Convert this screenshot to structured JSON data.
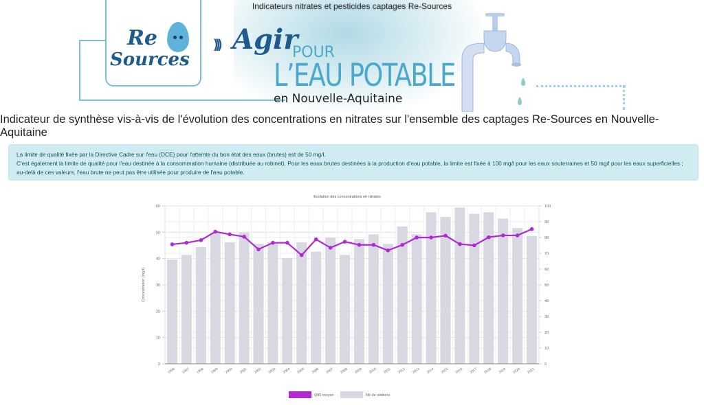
{
  "app": {
    "title": "Indicateurs nitrates et pesticides captages Re-Sources"
  },
  "banner": {
    "logo_re": "Re",
    "logo_sources": "Sources",
    "tagline_agir": "Agir",
    "tagline_pour": "POUR",
    "tagline_eau": "L’EAU POTABLE",
    "tagline_region": "en Nouvelle-Aquitaine"
  },
  "page": {
    "heading": "Indicateur de synthèse vis-à-vis de l'évolution des concentrations en nitrates sur l'ensemble des captages Re-Sources en Nouvelle-Aquitaine"
  },
  "info": {
    "line1": "La limite de qualité fixée par la Directive Cadre sur l'eau (DCE) pour l'atteinte du bon état des eaux (brutes) est de 50 mg/l.",
    "line2": "C'est également la limite de qualité pour l'eau destinée à la consommation humaine (distribuée au robinet). Pour les eaux brutes destinées à la production d'eau potable, la limite est fixée à 100 mg/l pour les eaux souterraines et 50 mg/l pour les eaux superficielles ; au-delà de ces valeurs, l'eau brute ne peut pas être utilisée pour produire de l'eau potable."
  },
  "colors": {
    "line": "#b02ad0",
    "bar": "#d8d8e2",
    "info_bg": "#d1ecf1",
    "info_text": "#0c5460",
    "brand": "#4aa9c9"
  },
  "chart_data": {
    "type": "bar+line",
    "title": "Evolution des concentrations en nitrates",
    "ylabel": "Concentration (mg/l)",
    "y2label": "",
    "ylim": [
      0,
      60
    ],
    "y2lim": [
      0,
      100
    ],
    "yticks": [
      "0",
      "10",
      "20",
      "30",
      "40",
      "50",
      "60"
    ],
    "y2ticks": [
      "0",
      "10",
      "20",
      "30",
      "40",
      "50",
      "60",
      "70",
      "80",
      "90",
      "100"
    ],
    "grid": true,
    "legend_position": "bottom",
    "categories": [
      "1996",
      "1997",
      "1998",
      "1999",
      "2000",
      "2001",
      "2002",
      "2003",
      "2004",
      "2005",
      "2006",
      "2007",
      "2008",
      "2009",
      "2010",
      "2011",
      "2012",
      "2013",
      "2014",
      "2015",
      "2016",
      "2017",
      "2018",
      "2019",
      "2020",
      "2021"
    ],
    "series": [
      {
        "name": "Q90 moyen",
        "type": "line",
        "axis": "left",
        "values": [
          45.4,
          46.0,
          47.0,
          50.2,
          49.2,
          48.3,
          43.5,
          46.0,
          46.0,
          41.3,
          47.3,
          44.1,
          46.4,
          45.2,
          45.2,
          43.1,
          45.2,
          48.0,
          48.0,
          48.7,
          45.5,
          45.0,
          48.1,
          48.8,
          48.8,
          51.2
        ]
      },
      {
        "name": "Nb de stations",
        "type": "bar",
        "axis": "right",
        "values": [
          66,
          69,
          74,
          83,
          77,
          83,
          76,
          77,
          67,
          77,
          71,
          80,
          69,
          79,
          82,
          76,
          87,
          82,
          96,
          93,
          99,
          95,
          96,
          92,
          86,
          81
        ]
      }
    ]
  }
}
